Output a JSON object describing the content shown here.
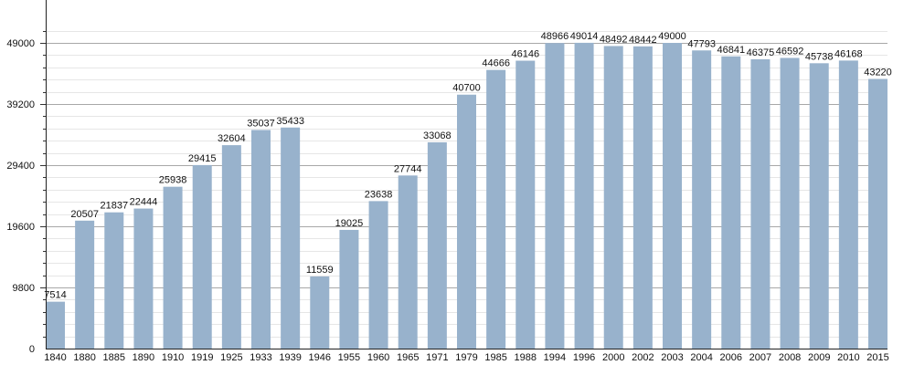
{
  "chart_data": {
    "type": "bar",
    "title": "",
    "xlabel": "",
    "ylabel": "",
    "ylim": [
      0,
      50960
    ],
    "yticks": [
      0,
      9800,
      19600,
      29400,
      39200,
      49000
    ],
    "minor_tick_step": 1960,
    "grid": true,
    "bar_color": "#98b2cc",
    "categories": [
      "1840",
      "1880",
      "1885",
      "1890",
      "1910",
      "1919",
      "1925",
      "1933",
      "1939",
      "1946",
      "1955",
      "1960",
      "1965",
      "1971",
      "1979",
      "1985",
      "1988",
      "1994",
      "1996",
      "2000",
      "2002",
      "2003",
      "2004",
      "2006",
      "2007",
      "2008",
      "2009",
      "2010",
      "2015"
    ],
    "values": [
      7514,
      20507,
      21837,
      22444,
      25938,
      29415,
      32604,
      35037,
      35433,
      11559,
      19025,
      23638,
      27744,
      33068,
      40700,
      44666,
      46146,
      48966,
      49014,
      48492,
      48442,
      49000,
      47793,
      46841,
      46375,
      46592,
      45738,
      46168,
      43220
    ]
  }
}
